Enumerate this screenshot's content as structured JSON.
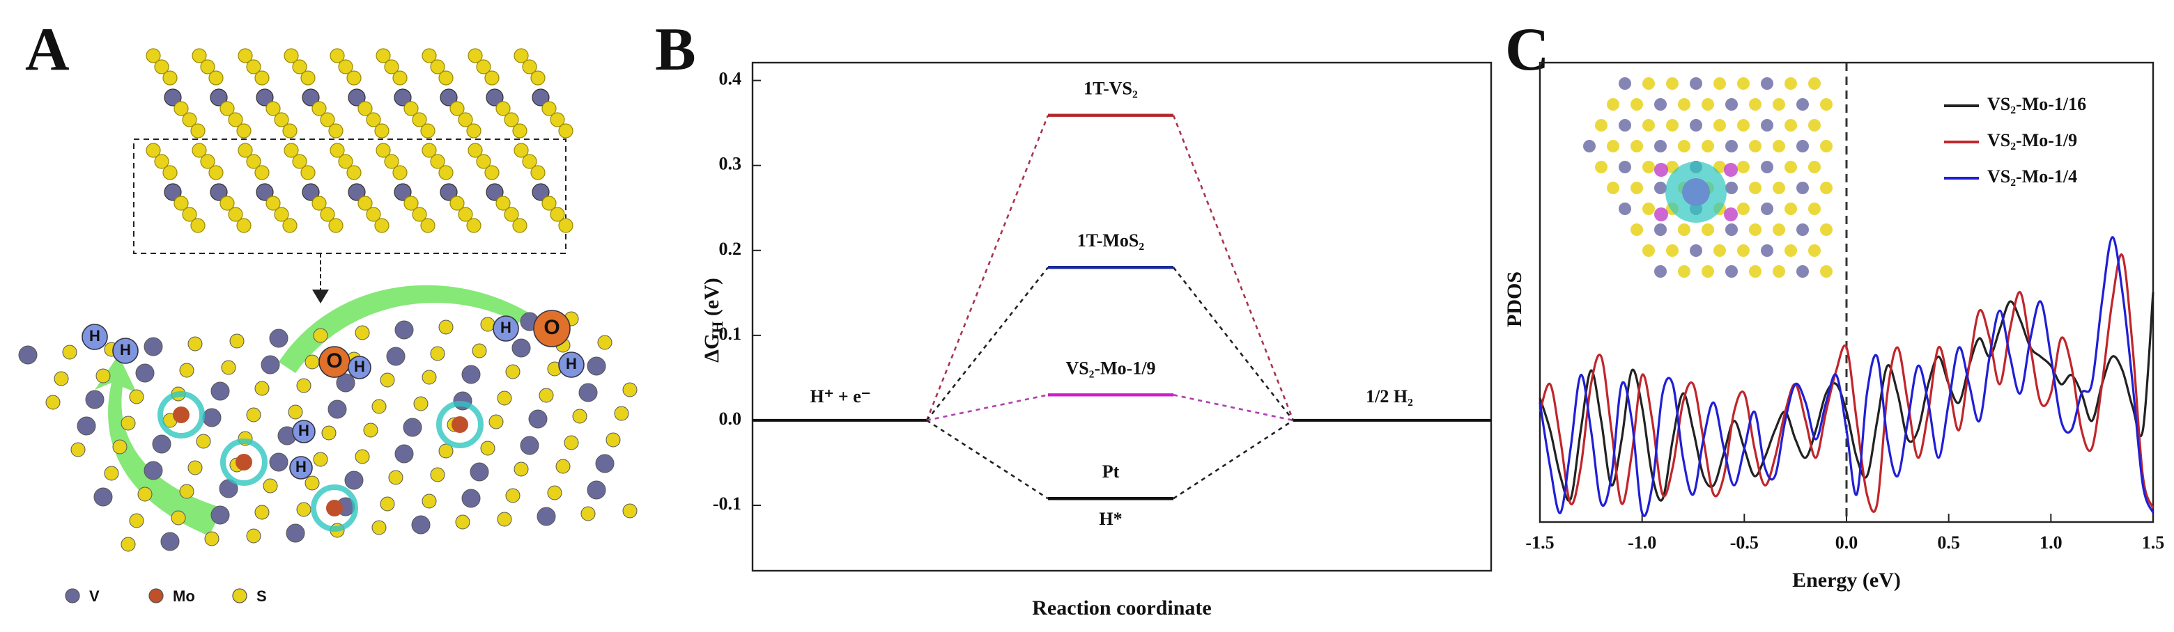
{
  "illustration": {
    "panel_label": "A",
    "legend": [
      "V",
      "Mo",
      "S"
    ],
    "atom_labels": [
      "H",
      "H",
      "H",
      "O",
      "H",
      "O",
      "H",
      "H",
      "H"
    ]
  },
  "chart_data": [
    {
      "type": "energy",
      "panel_label": "B",
      "ylabel": "ΔG",
      "ylabel_sub": "H",
      "ylabel_unit": " (eV)",
      "xlabel": "Reaction coordinate",
      "ylim": [
        -0.177,
        0.421
      ],
      "yticks": [
        -0.1,
        {
          "value": 0,
          "label": "0.0"
        },
        0.1,
        0.2,
        0.3,
        0.4
      ],
      "initial": {
        "label": "H⁺ + e⁻",
        "value": 0
      },
      "final": {
        "label": "1/2 H₂",
        "value": 0
      },
      "series": [
        {
          "name": "1T-VS₂",
          "color": "#b3262b",
          "connector_color": "#a8344f",
          "values": [
            0.359
          ]
        },
        {
          "name": "1T-MoS₂",
          "color": "#1b2a9c",
          "connector_color": "#222222",
          "values": [
            0.18
          ]
        },
        {
          "name": "VS₂-Mo-1/9",
          "color": "#cc1fcc",
          "connector_color": "#b040b0",
          "values": [
            0.03
          ]
        },
        {
          "name": "Pt",
          "color": "#111111",
          "connector_color": "#222222",
          "values": [
            -0.092
          ],
          "annotation": "H*"
        }
      ]
    },
    {
      "type": "line",
      "panel_label": "C",
      "ylabel": "PDOS",
      "xlabel": "Energy (eV)",
      "xlim": [
        -1.5,
        1.5
      ],
      "xticks": [
        -1.5,
        {
          "value": -1,
          "label": "-1.0"
        },
        -0.5,
        {
          "value": 0,
          "label": "0.0"
        },
        0.5,
        {
          "value": 1,
          "label": "1.0"
        },
        1.5
      ],
      "ylim": [
        0,
        1
      ],
      "vline": 0,
      "x": [
        -1.5,
        -1.45,
        -1.4,
        -1.35,
        -1.3,
        -1.25,
        -1.2,
        -1.15,
        -1.1,
        -1.05,
        -1,
        -0.95,
        -0.9,
        -0.85,
        -0.8,
        -0.75,
        -0.7,
        -0.65,
        -0.6,
        -0.55,
        -0.5,
        -0.45,
        -0.4,
        -0.35,
        -0.3,
        -0.25,
        -0.2,
        -0.15,
        -0.1,
        -0.05,
        0,
        0.05,
        0.1,
        0.15,
        0.2,
        0.25,
        0.3,
        0.35,
        0.4,
        0.45,
        0.5,
        0.55,
        0.6,
        0.65,
        0.7,
        0.75,
        0.8,
        0.85,
        0.9,
        0.95,
        1,
        1.05,
        1.1,
        1.15,
        1.2,
        1.25,
        1.3,
        1.35,
        1.4,
        1.45,
        1.5
      ],
      "series": [
        {
          "name": "VS₂-Mo-1/16",
          "color": "#222222",
          "values": [
            0.27,
            0.2,
            0.1,
            0.05,
            0.2,
            0.33,
            0.22,
            0.08,
            0.18,
            0.33,
            0.25,
            0.1,
            0.05,
            0.18,
            0.28,
            0.2,
            0.1,
            0.08,
            0.15,
            0.22,
            0.16,
            0.1,
            0.14,
            0.2,
            0.24,
            0.18,
            0.14,
            0.2,
            0.28,
            0.3,
            0.24,
            0.14,
            0.1,
            0.22,
            0.34,
            0.28,
            0.18,
            0.2,
            0.3,
            0.36,
            0.3,
            0.26,
            0.34,
            0.4,
            0.36,
            0.42,
            0.48,
            0.44,
            0.38,
            0.36,
            0.34,
            0.3,
            0.32,
            0.28,
            0.22,
            0.3,
            0.36,
            0.33,
            0.25,
            0.2,
            0.5
          ]
        },
        {
          "name": "VS₂-Mo-1/9",
          "color": "#c0262b",
          "values": [
            0.24,
            0.3,
            0.18,
            0.04,
            0.12,
            0.3,
            0.36,
            0.2,
            0.04,
            0.15,
            0.32,
            0.22,
            0.06,
            0.12,
            0.26,
            0.3,
            0.18,
            0.06,
            0.1,
            0.24,
            0.28,
            0.16,
            0.08,
            0.14,
            0.24,
            0.3,
            0.22,
            0.14,
            0.24,
            0.33,
            0.38,
            0.22,
            0.06,
            0.04,
            0.28,
            0.38,
            0.26,
            0.14,
            0.24,
            0.38,
            0.3,
            0.2,
            0.34,
            0.46,
            0.4,
            0.3,
            0.42,
            0.5,
            0.38,
            0.26,
            0.28,
            0.4,
            0.34,
            0.2,
            0.16,
            0.3,
            0.48,
            0.58,
            0.38,
            0.1,
            0.03
          ]
        },
        {
          "name": "VS₂-Mo-1/4",
          "color": "#1f1fd6",
          "values": [
            0.26,
            0.12,
            0.02,
            0.16,
            0.32,
            0.2,
            0.04,
            0.1,
            0.3,
            0.22,
            0.02,
            0.08,
            0.28,
            0.3,
            0.14,
            0.06,
            0.18,
            0.26,
            0.16,
            0.08,
            0.16,
            0.24,
            0.12,
            0.1,
            0.22,
            0.3,
            0.26,
            0.18,
            0.26,
            0.32,
            0.2,
            0.06,
            0.28,
            0.36,
            0.18,
            0.1,
            0.22,
            0.34,
            0.26,
            0.14,
            0.26,
            0.38,
            0.3,
            0.22,
            0.36,
            0.46,
            0.36,
            0.28,
            0.4,
            0.48,
            0.36,
            0.22,
            0.2,
            0.28,
            0.3,
            0.48,
            0.62,
            0.5,
            0.3,
            0.08,
            0.02
          ]
        }
      ]
    }
  ]
}
